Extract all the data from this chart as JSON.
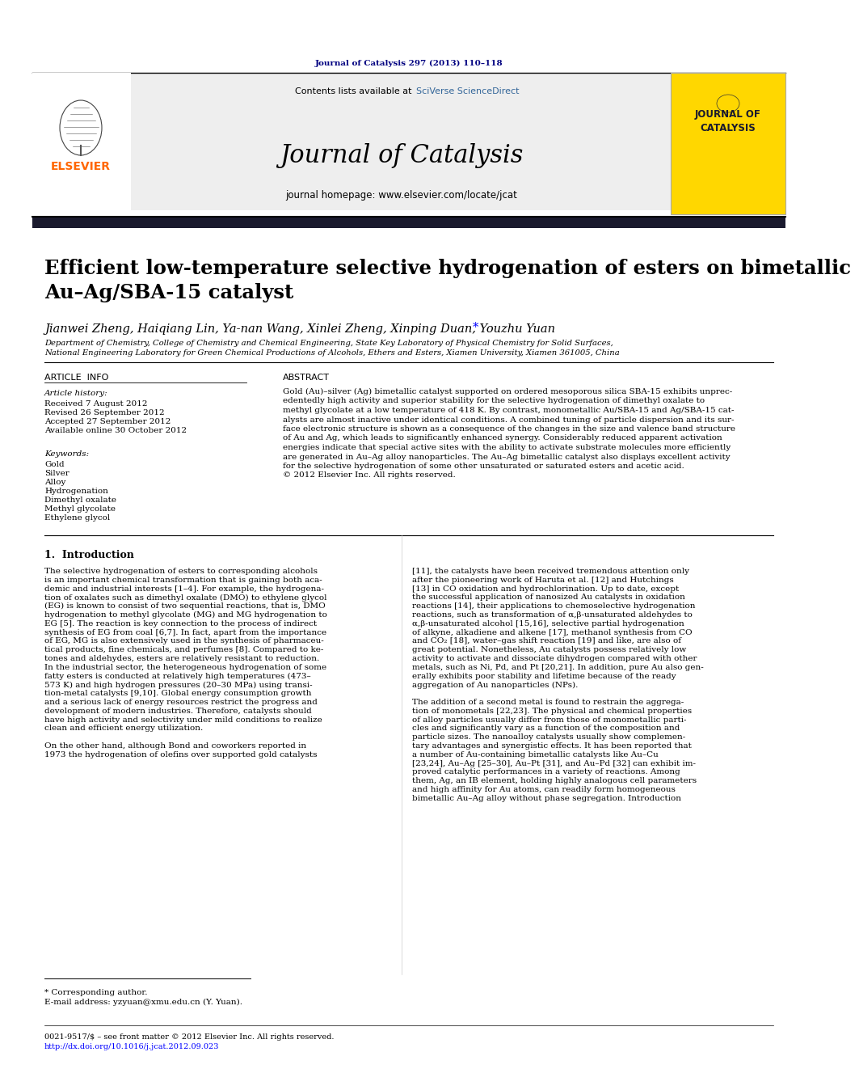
{
  "page_title_top": "Journal of Catalysis 297 (2013) 110–118",
  "journal_name": "Journal of Catalysis",
  "contents_text": "Contents lists available at ",
  "sciverse_text": "SciVerse ScienceDirect",
  "homepage_text": "journal homepage: www.elsevier.com/locate/jcat",
  "elsevier_color": "#FF6600",
  "sciverse_color": "#336699",
  "article_title": "Efficient low-temperature selective hydrogenation of esters on bimetallic\nAu–Ag/SBA-15 catalyst",
  "authors_no_star": "Jianwei Zheng, Haiqiang Lin, Ya-nan Wang, Xinlei Zheng, Xinping Duan, Youzhu Yuan",
  "affiliation1": "Department of Chemistry, College of Chemistry and Chemical Engineering, State Key Laboratory of Physical Chemistry for Solid Surfaces,",
  "affiliation2": "National Engineering Laboratory for Green Chemical Productions of Alcohols, Ethers and Esters, Xiamen University, Xiamen 361005, China",
  "article_info_header": "ARTICLE  INFO",
  "abstract_header": "ABSTRACT",
  "article_history_label": "Article history:",
  "received": "Received 7 August 2012",
  "revised": "Revised 26 September 2012",
  "accepted": "Accepted 27 September 2012",
  "online": "Available online 30 October 2012",
  "keywords_label": "Keywords:",
  "keywords": [
    "Gold",
    "Silver",
    "Alloy",
    "Hydrogenation",
    "Dimethyl oxalate",
    "Methyl glycolate",
    "Ethylene glycol"
  ],
  "abstract_lines": [
    "Gold (Au)–silver (Ag) bimetallic catalyst supported on ordered mesoporous silica SBA-15 exhibits unprec-",
    "edentedly high activity and superior stability for the selective hydrogenation of dimethyl oxalate to",
    "methyl glycolate at a low temperature of 418 K. By contrast, monometallic Au/SBA-15 and Ag/SBA-15 cat-",
    "alysts are almost inactive under identical conditions. A combined tuning of particle dispersion and its sur-",
    "face electronic structure is shown as a consequence of the changes in the size and valence band structure",
    "of Au and Ag, which leads to significantly enhanced synergy. Considerably reduced apparent activation",
    "energies indicate that special active sites with the ability to activate substrate molecules more efficiently",
    "are generated in Au–Ag alloy nanoparticles. The Au–Ag bimetallic catalyst also displays excellent activity",
    "for the selective hydrogenation of some other unsaturated or saturated esters and acetic acid.",
    "© 2012 Elsevier Inc. All rights reserved."
  ],
  "section1_header": "1.  Introduction",
  "col1_lines": [
    "The selective hydrogenation of esters to corresponding alcohols",
    "is an important chemical transformation that is gaining both aca-",
    "demic and industrial interests [1–4]. For example, the hydrogena-",
    "tion of oxalates such as dimethyl oxalate (DMO) to ethylene glycol",
    "(EG) is known to consist of two sequential reactions, that is, DMO",
    "hydrogenation to methyl glycolate (MG) and MG hydrogenation to",
    "EG [5]. The reaction is key connection to the process of indirect",
    "synthesis of EG from coal [6,7]. In fact, apart from the importance",
    "of EG, MG is also extensively used in the synthesis of pharmaceu-",
    "tical products, fine chemicals, and perfumes [8]. Compared to ke-",
    "tones and aldehydes, esters are relatively resistant to reduction.",
    "In the industrial sector, the heterogeneous hydrogenation of some",
    "fatty esters is conducted at relatively high temperatures (473–",
    "573 K) and high hydrogen pressures (20–30 MPa) using transi-",
    "tion-metal catalysts [9,10]. Global energy consumption growth",
    "and a serious lack of energy resources restrict the progress and",
    "development of modern industries. Therefore, catalysts should",
    "have high activity and selectivity under mild conditions to realize",
    "clean and efficient energy utilization.",
    "",
    "On the other hand, although Bond and coworkers reported in",
    "1973 the hydrogenation of olefins over supported gold catalysts"
  ],
  "col2_lines": [
    "[11], the catalysts have been received tremendous attention only",
    "after the pioneering work of Haruta et al. [12] and Hutchings",
    "[13] in CO oxidation and hydrochlorination. Up to date, except",
    "the successful application of nanosized Au catalysts in oxidation",
    "reactions [14], their applications to chemoselective hydrogenation",
    "reactions, such as transformation of α,β-unsaturated aldehydes to",
    "α,β-unsaturated alcohol [15,16], selective partial hydrogenation",
    "of alkyne, alkadiene and alkene [17], methanol synthesis from CO",
    "and CO₂ [18], water–gas shift reaction [19] and like, are also of",
    "great potential. Nonetheless, Au catalysts possess relatively low",
    "activity to activate and dissociate dihydrogen compared with other",
    "metals, such as Ni, Pd, and Pt [20,21]. In addition, pure Au also gen-",
    "erally exhibits poor stability and lifetime because of the ready",
    "aggregation of Au nanoparticles (NPs).",
    "",
    "The addition of a second metal is found to restrain the aggrega-",
    "tion of monometals [22,23]. The physical and chemical properties",
    "of alloy particles usually differ from those of monometallic parti-",
    "cles and significantly vary as a function of the composition and",
    "particle sizes. The nanoalloy catalysts usually show complemen-",
    "tary advantages and synergistic effects. It has been reported that",
    "a number of Au-containing bimetallic catalysts like Au–Cu",
    "[23,24], Au–Ag [25–30], Au–Pt [31], and Au–Pd [32] can exhibit im-",
    "proved catalytic performances in a variety of reactions. Among",
    "them, Ag, an IB element, holding highly analogous cell parameters",
    "and high affinity for Au atoms, can readily form homogeneous",
    "bimetallic Au–Ag alloy without phase segregation. Introduction"
  ],
  "footnote_star": "* Corresponding author.",
  "footnote_email": "E-mail address: yzyuan@xmu.edu.cn (Y. Yuan).",
  "bottom_line1": "0021-9517/$ – see front matter © 2012 Elsevier Inc. All rights reserved.",
  "bottom_line2": "http://dx.doi.org/10.1016/j.jcat.2012.09.023",
  "bg_color": "#ffffff",
  "dark_bar_color": "#1a1a2e",
  "page_title_color": "#000080",
  "text_color": "#000000"
}
